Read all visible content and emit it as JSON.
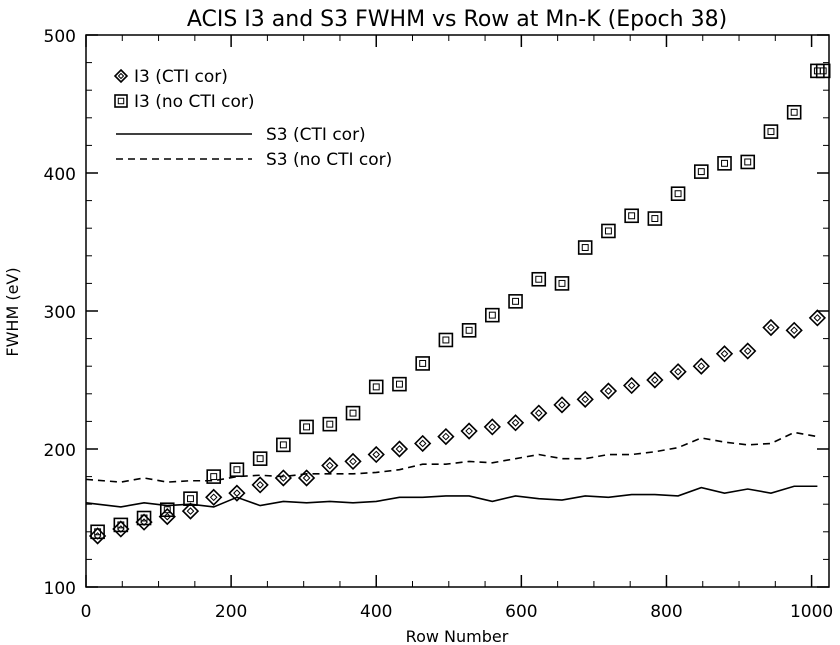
{
  "chart_data": {
    "type": "scatter",
    "title": "ACIS I3 and S3 FWHM vs Row at Mn-K (Epoch 38)",
    "xlabel": "Row Number",
    "ylabel": "FWHM (eV)",
    "xlim": [
      0,
      1024
    ],
    "ylim": [
      100,
      500
    ],
    "xticks": [
      0,
      200,
      400,
      600,
      800,
      1000
    ],
    "yticks": [
      100,
      200,
      300,
      400,
      500
    ],
    "grid": false,
    "legend_position": "top-left",
    "series": [
      {
        "name": "I3 (CTI cor)",
        "kind": "points",
        "marker": "diamond",
        "x": [
          16,
          48,
          80,
          112,
          144,
          176,
          208,
          240,
          272,
          304,
          336,
          368,
          400,
          432,
          464,
          496,
          528,
          560,
          592,
          624,
          656,
          688,
          720,
          752,
          784,
          816,
          848,
          880,
          912,
          944,
          976,
          1008
        ],
        "y": [
          137,
          142,
          147,
          151,
          155,
          165,
          168,
          174,
          179,
          179,
          188,
          191,
          196,
          200,
          204,
          209,
          213,
          216,
          219,
          226,
          232,
          236,
          242,
          246,
          250,
          256,
          260,
          269,
          271,
          288,
          286,
          295
        ]
      },
      {
        "name": "I3 (no CTI cor)",
        "kind": "points",
        "marker": "square",
        "x": [
          16,
          48,
          80,
          112,
          144,
          176,
          208,
          240,
          272,
          304,
          336,
          368,
          400,
          432,
          464,
          496,
          528,
          560,
          592,
          624,
          656,
          688,
          720,
          752,
          784,
          816,
          848,
          880,
          912,
          944,
          976,
          1008,
          1016
        ],
        "y": [
          140,
          145,
          150,
          156,
          164,
          180,
          185,
          193,
          203,
          216,
          218,
          226,
          245,
          247,
          262,
          279,
          286,
          297,
          307,
          323,
          320,
          346,
          358,
          369,
          367,
          385,
          401,
          407,
          408,
          430,
          444,
          474,
          474
        ]
      },
      {
        "name": "S3 (CTI cor)",
        "kind": "line",
        "style": "solid",
        "x": [
          0,
          48,
          80,
          112,
          144,
          176,
          208,
          240,
          272,
          304,
          336,
          368,
          400,
          432,
          464,
          496,
          528,
          560,
          592,
          624,
          656,
          688,
          720,
          752,
          784,
          816,
          848,
          880,
          912,
          944,
          976,
          1008
        ],
        "y": [
          161,
          158,
          161,
          159,
          160,
          158,
          165,
          159,
          162,
          161,
          162,
          161,
          162,
          165,
          165,
          166,
          166,
          162,
          166,
          164,
          163,
          166,
          165,
          167,
          167,
          166,
          172,
          168,
          171,
          168,
          173,
          173
        ]
      },
      {
        "name": "S3 (no CTI cor)",
        "kind": "line",
        "style": "dashed",
        "x": [
          0,
          48,
          80,
          112,
          144,
          176,
          208,
          240,
          272,
          304,
          336,
          368,
          400,
          432,
          464,
          496,
          528,
          560,
          592,
          624,
          656,
          688,
          720,
          752,
          784,
          816,
          848,
          880,
          912,
          944,
          976,
          1008
        ],
        "y": [
          178,
          176,
          179,
          176,
          177,
          177,
          180,
          181,
          180,
          182,
          182,
          182,
          183,
          185,
          189,
          189,
          191,
          190,
          193,
          196,
          193,
          193,
          196,
          196,
          198,
          201,
          208,
          205,
          203,
          204,
          212,
          209
        ]
      }
    ]
  }
}
